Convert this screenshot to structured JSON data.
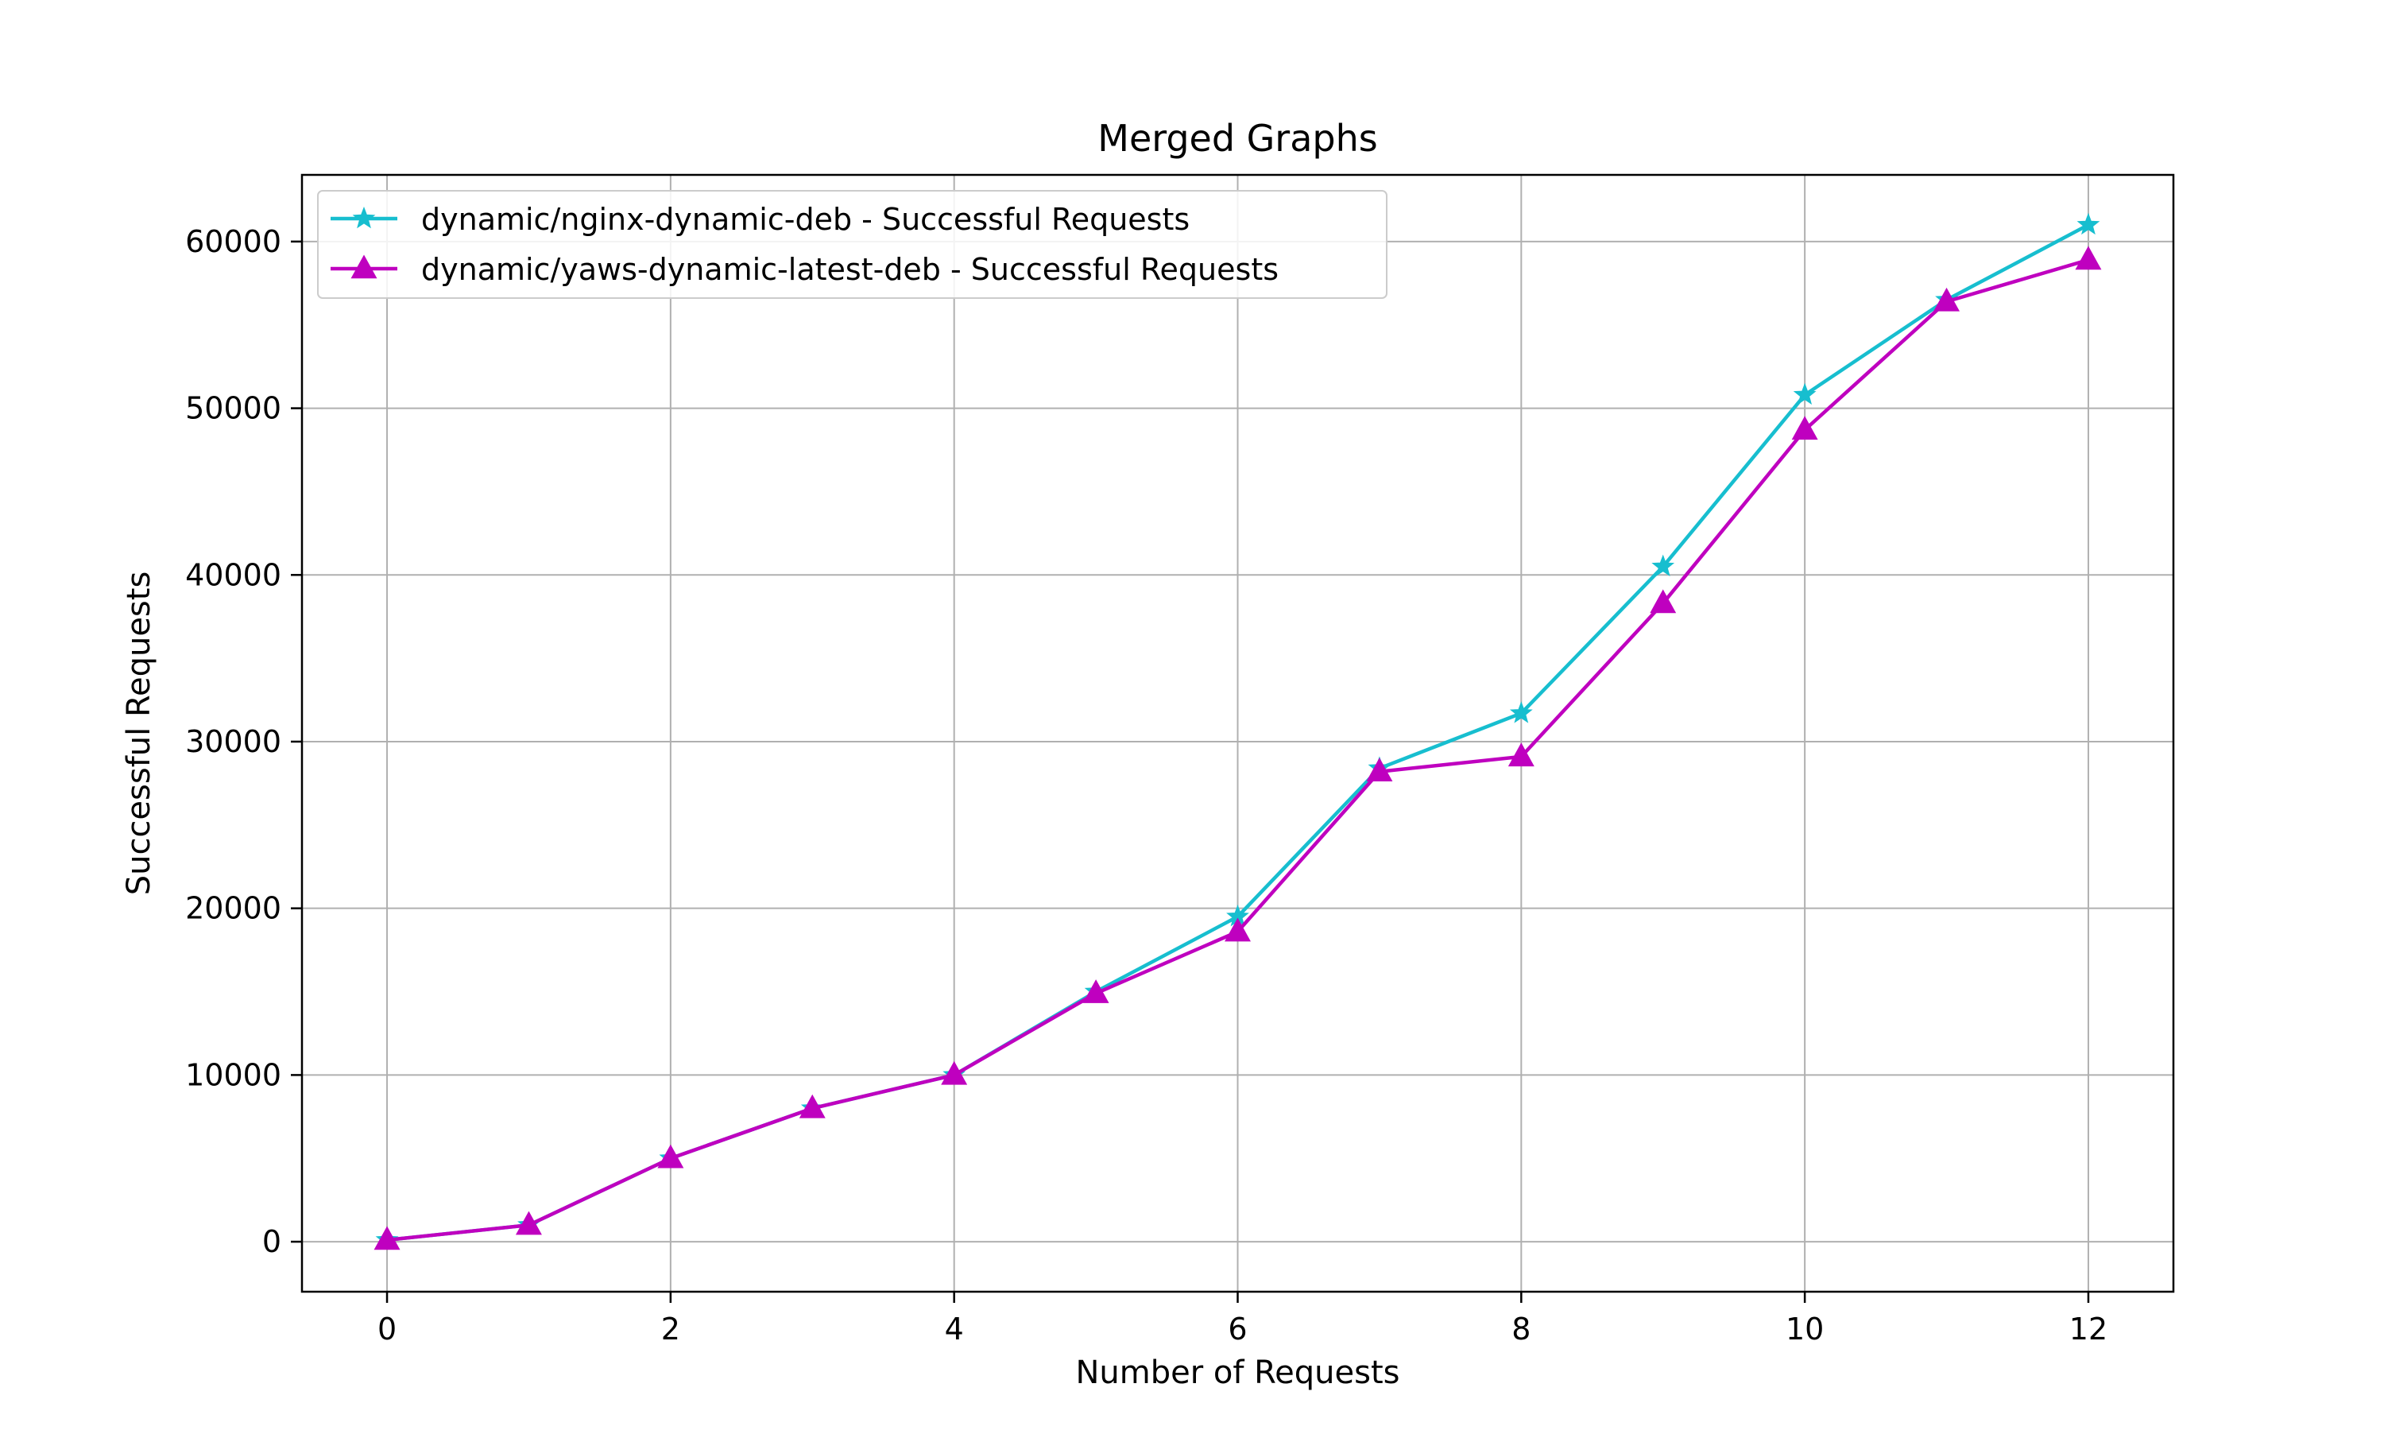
{
  "chart_data": {
    "type": "line",
    "title": "Merged Graphs",
    "xlabel": "Number of Requests",
    "ylabel": "Successful Requests",
    "xlim": [
      -0.6,
      12.6
    ],
    "ylim": [
      -3000,
      64000
    ],
    "x_ticks": [
      0,
      2,
      4,
      6,
      8,
      10,
      12
    ],
    "y_ticks": [
      0,
      10000,
      20000,
      30000,
      40000,
      50000,
      60000
    ],
    "grid": true,
    "legend_position": "top-left",
    "x": [
      0,
      1,
      2,
      3,
      4,
      5,
      6,
      7,
      8,
      9,
      10,
      11,
      12
    ],
    "series": [
      {
        "name": "dynamic/nginx-dynamic-deb - Successful Requests",
        "color": "#17becf",
        "marker": "star",
        "values": [
          100,
          1000,
          5000,
          8000,
          10000,
          15000,
          19500,
          28400,
          31700,
          40500,
          50800,
          56500,
          61000
        ]
      },
      {
        "name": "dynamic/yaws-dynamic-latest-deb - Successful Requests",
        "color": "#bf00bf",
        "marker": "triangle",
        "values": [
          100,
          1000,
          5000,
          8000,
          10000,
          14900,
          18600,
          28200,
          29100,
          38300,
          48700,
          56400,
          58900
        ]
      }
    ]
  }
}
